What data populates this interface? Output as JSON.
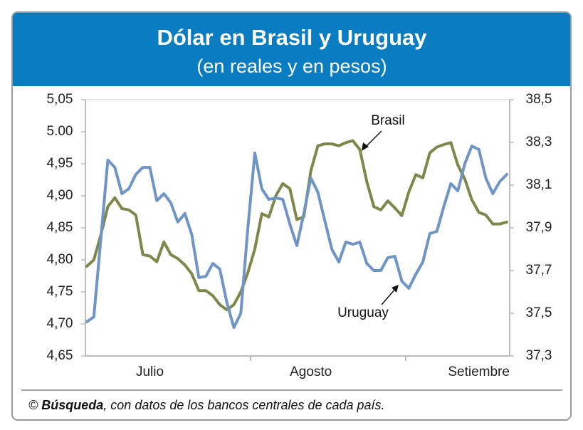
{
  "chart_data": {
    "type": "line",
    "title": "Dólar en Brasil y Uruguay",
    "subtitle": "(en reales y en pesos)",
    "categories": [
      null,
      null,
      null,
      null,
      null,
      null,
      null,
      null,
      null,
      "Julio",
      null,
      null,
      null,
      null,
      null,
      null,
      null,
      null,
      null,
      null,
      null,
      null,
      null,
      null,
      null,
      null,
      null,
      null,
      null,
      null,
      null,
      null,
      "Agosto",
      null,
      null,
      null,
      null,
      null,
      null,
      null,
      null,
      null,
      null,
      null,
      null,
      null,
      null,
      null,
      null,
      null,
      null,
      null,
      null,
      null,
      null,
      null,
      "Setiembre",
      null,
      null,
      null,
      null
    ],
    "series": [
      {
        "name": "Brasil",
        "color": "#7d884a",
        "axis": "y",
        "values": [
          4.79,
          4.8,
          4.839,
          4.883,
          4.897,
          4.88,
          4.878,
          4.87,
          4.808,
          4.806,
          4.797,
          4.828,
          4.808,
          4.802,
          4.792,
          4.778,
          4.752,
          4.752,
          4.744,
          4.73,
          4.722,
          4.73,
          4.75,
          4.78,
          4.817,
          4.872,
          4.867,
          4.9,
          4.919,
          4.911,
          4.863,
          4.867,
          4.939,
          4.978,
          4.981,
          4.981,
          4.978,
          4.983,
          4.986,
          4.972,
          4.922,
          4.883,
          4.878,
          4.892,
          4.881,
          4.869,
          4.906,
          4.933,
          4.928,
          4.967,
          4.976,
          4.98,
          4.983,
          4.948,
          4.926,
          4.894,
          4.874,
          4.87,
          4.856,
          4.856,
          4.859
        ]
      },
      {
        "name": "Uruguay",
        "color": "#6f95c6",
        "axis": "y2",
        "values": [
          37.46,
          37.483,
          37.85,
          38.217,
          38.183,
          38.06,
          38.083,
          38.15,
          38.183,
          38.183,
          38.027,
          38.06,
          38.017,
          37.927,
          37.967,
          37.867,
          37.667,
          37.673,
          37.733,
          37.707,
          37.55,
          37.433,
          37.5,
          37.9,
          38.25,
          38.083,
          38.033,
          38.04,
          38.033,
          37.917,
          37.817,
          37.967,
          38.133,
          38.067,
          37.933,
          37.8,
          37.74,
          37.833,
          37.823,
          37.833,
          37.733,
          37.7,
          37.7,
          37.76,
          37.767,
          37.65,
          37.617,
          37.683,
          37.74,
          37.873,
          37.883,
          38.0,
          38.107,
          38.073,
          38.2,
          38.283,
          38.267,
          38.133,
          38.06,
          38.117,
          38.15
        ]
      }
    ],
    "ylim": [
      4.65,
      5.05
    ],
    "yticks": [
      {
        "value": 4.65,
        "label": "4,65"
      },
      {
        "value": 4.7,
        "label": "4,70"
      },
      {
        "value": 4.75,
        "label": "4,75"
      },
      {
        "value": 4.8,
        "label": "4,80"
      },
      {
        "value": 4.85,
        "label": "4,85"
      },
      {
        "value": 4.9,
        "label": "4,90"
      },
      {
        "value": 4.95,
        "label": "4,95"
      },
      {
        "value": 5.0,
        "label": "5.00"
      },
      {
        "value": 5.05,
        "label": "5,05"
      }
    ],
    "y2lim": [
      37.3,
      38.5
    ],
    "y2ticks": [
      {
        "value": 37.3,
        "label": "37,3"
      },
      {
        "value": 37.5,
        "label": "37,5"
      },
      {
        "value": 37.7,
        "label": "37,7"
      },
      {
        "value": 37.9,
        "label": "37,9"
      },
      {
        "value": 38.1,
        "label": "38,1"
      },
      {
        "value": 38.3,
        "label": "38,3"
      },
      {
        "value": 38.5,
        "label": "38,5"
      }
    ],
    "source_mark": "©",
    "source_name": "Búsqueda",
    "source_rest": ", con datos de los bancos centrales de cada país."
  }
}
